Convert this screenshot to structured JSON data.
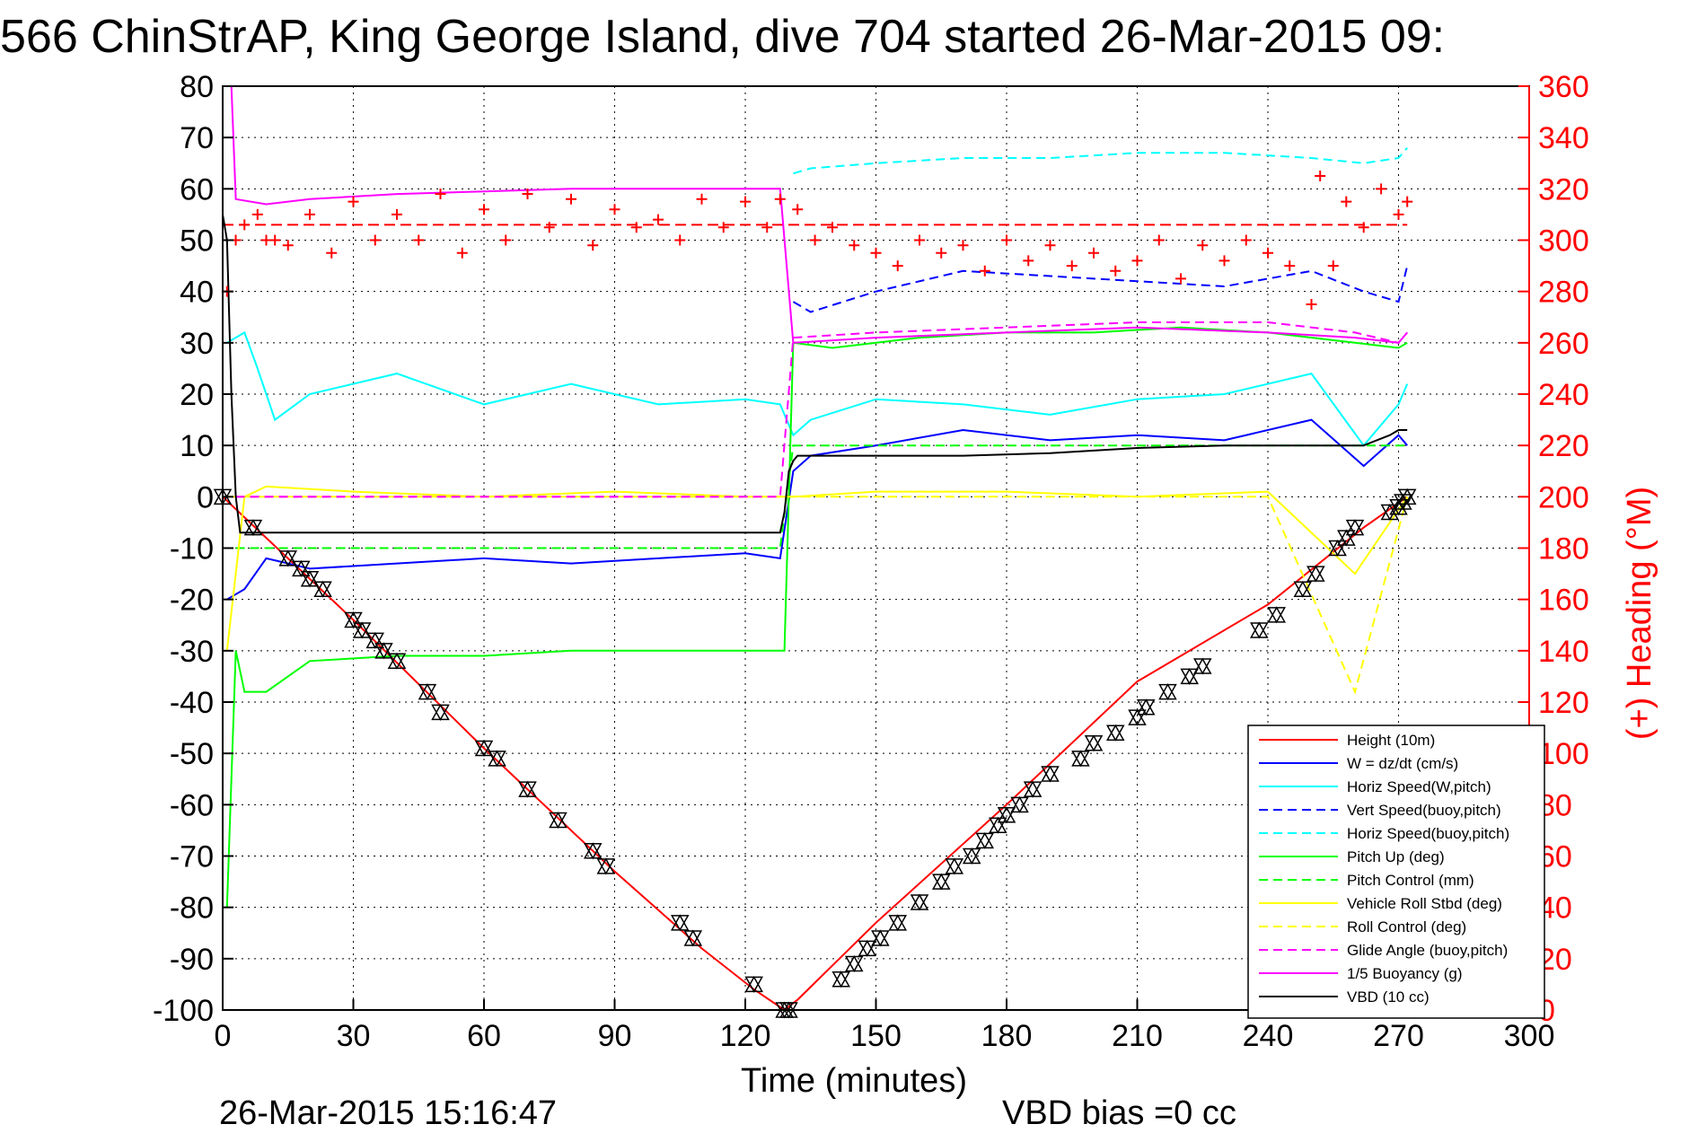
{
  "chart_data": {
    "type": "line",
    "title": "566 ChinStrAP, King George Island, dive 704 started 26-Mar-2015 09:",
    "xlabel": "Time (minutes)",
    "ylabel_right": "(+) Heading (°M)",
    "xlim": [
      0,
      300
    ],
    "ylim": [
      -100,
      80
    ],
    "ylim_right": [
      0,
      360
    ],
    "x_ticks": [
      0,
      30,
      60,
      90,
      120,
      150,
      180,
      210,
      240,
      270,
      300
    ],
    "y_ticks": [
      80,
      70,
      60,
      50,
      40,
      30,
      20,
      10,
      0,
      -10,
      -20,
      -30,
      -40,
      -50,
      -60,
      -70,
      -80,
      -90,
      -100
    ],
    "y_ticks_right": [
      360,
      340,
      320,
      300,
      280,
      260,
      240,
      220,
      200,
      180,
      160,
      140,
      120,
      100,
      80,
      60,
      40,
      20,
      0
    ],
    "grid": true,
    "legend_position": "lower-right",
    "footer_left": "26-Mar-2015 15:16:47",
    "footer_right": "VBD bias =0 cc",
    "series": [
      {
        "name": "Height (10m)",
        "color": "#ff0000",
        "style": "solid",
        "x": [
          0,
          10,
          30,
          60,
          90,
          110,
          122,
          129,
          132,
          150,
          180,
          210,
          240,
          262,
          272
        ],
        "y": [
          0,
          -8,
          -24,
          -49,
          -73,
          -88,
          -96,
          -100,
          -98,
          -83,
          -60,
          -36,
          -21,
          -6,
          0
        ]
      },
      {
        "name": "W = dz/dt (cm/s)",
        "color": "#0000ff",
        "style": "solid",
        "x": [
          1,
          5,
          10,
          20,
          40,
          60,
          80,
          100,
          120,
          128,
          131,
          135,
          150,
          170,
          190,
          210,
          230,
          250,
          262,
          270,
          272
        ],
        "y": [
          -20,
          -18,
          -12,
          -14,
          -13,
          -12,
          -13,
          -12,
          -11,
          -12,
          5,
          8,
          10,
          13,
          11,
          12,
          11,
          15,
          6,
          12,
          10
        ]
      },
      {
        "name": "Horiz Speed(W,pitch)",
        "color": "#00ffff",
        "style": "solid",
        "x": [
          1,
          5,
          8,
          12,
          20,
          40,
          60,
          80,
          100,
          120,
          128,
          131,
          135,
          150,
          170,
          190,
          210,
          230,
          250,
          262,
          270,
          272
        ],
        "y": [
          30,
          32,
          25,
          15,
          20,
          24,
          18,
          22,
          18,
          19,
          18,
          12,
          15,
          19,
          18,
          16,
          19,
          20,
          24,
          10,
          18,
          22
        ]
      },
      {
        "name": "Vert Speed(buoy,pitch)",
        "color": "#0000ff",
        "style": "dashed",
        "x": [
          131,
          135,
          150,
          170,
          190,
          210,
          230,
          250,
          262,
          270,
          272
        ],
        "y": [
          38,
          36,
          40,
          44,
          43,
          42,
          41,
          44,
          40,
          38,
          45
        ]
      },
      {
        "name": "Horiz Speed(buoy,pitch)",
        "color": "#00ffff",
        "style": "dashed",
        "x": [
          131,
          135,
          150,
          170,
          190,
          210,
          230,
          250,
          262,
          270,
          272
        ],
        "y": [
          63,
          64,
          65,
          66,
          66,
          67,
          67,
          66,
          65,
          66,
          68
        ]
      },
      {
        "name": "Pitch Up (deg)",
        "color": "#00ff00",
        "style": "solid",
        "x": [
          1,
          3,
          5,
          10,
          20,
          40,
          60,
          80,
          100,
          120,
          128,
          129,
          131,
          140,
          160,
          180,
          200,
          220,
          240,
          260,
          270,
          272
        ],
        "y": [
          -80,
          -30,
          -38,
          -38,
          -32,
          -31,
          -31,
          -30,
          -30,
          -30,
          -30,
          -30,
          30,
          29,
          31,
          32,
          32,
          33,
          32,
          30,
          29,
          30
        ]
      },
      {
        "name": "Pitch Control (mm)",
        "color": "#00ff00",
        "style": "dashed",
        "x": [
          3,
          10,
          30,
          60,
          90,
          120,
          128,
          131,
          140,
          160,
          180,
          200,
          220,
          240,
          260,
          272
        ],
        "y": [
          -10,
          -10,
          -10,
          -10,
          -10,
          -10,
          -10,
          10,
          10,
          10,
          10,
          10,
          10,
          10,
          10,
          10
        ]
      },
      {
        "name": "Vehicle Roll Stbd (deg)",
        "color": "#ffff00",
        "style": "solid",
        "x": [
          1,
          5,
          10,
          30,
          60,
          90,
          120,
          128,
          131,
          150,
          180,
          210,
          240,
          260,
          272
        ],
        "y": [
          -30,
          0,
          2,
          1,
          0,
          1,
          0,
          0,
          0,
          1,
          1,
          0,
          1,
          -15,
          0
        ]
      },
      {
        "name": "Roll Control (deg)",
        "color": "#ffff00",
        "style": "dashed",
        "x": [
          1,
          10,
          60,
          120,
          131,
          180,
          240,
          260,
          272
        ],
        "y": [
          0,
          0,
          0,
          0,
          0,
          0,
          0,
          -38,
          0
        ]
      },
      {
        "name": "Glide Angle (buoy,pitch)",
        "color": "#ff00ff",
        "style": "dashed",
        "x": [
          3,
          10,
          60,
          120,
          128,
          131,
          150,
          180,
          210,
          240,
          260,
          270,
          272
        ],
        "y": [
          0,
          0,
          0,
          0,
          0,
          31,
          32,
          33,
          34,
          34,
          32,
          30,
          32
        ]
      },
      {
        "name": "1/5 Buoyancy (g)",
        "color": "#ff00ff",
        "style": "solid",
        "x": [
          1,
          2,
          3,
          10,
          20,
          40,
          60,
          80,
          100,
          120,
          128,
          131,
          150,
          180,
          210,
          240,
          260,
          270,
          272
        ],
        "y": [
          80,
          80,
          58,
          57,
          58,
          59,
          59.5,
          60,
          60,
          60,
          60,
          30,
          31,
          32,
          33,
          32,
          31,
          30,
          32
        ]
      },
      {
        "name": "VBD (10 cc)",
        "color": "#000000",
        "style": "solid",
        "x": [
          0,
          1,
          2,
          3,
          4,
          128,
          129,
          130,
          131,
          132,
          150,
          170,
          190,
          210,
          230,
          250,
          262,
          268,
          270,
          272
        ],
        "y": [
          55,
          50,
          20,
          0,
          -7,
          -7,
          -3,
          5,
          7,
          8,
          8,
          8,
          8.5,
          9.5,
          10,
          10,
          10,
          12,
          13,
          13
        ]
      },
      {
        "name": "Heading",
        "color": "#ff0000",
        "style": "plus-markers",
        "axis": "right",
        "x": [
          1,
          3,
          5,
          8,
          10,
          12,
          15,
          20,
          25,
          30,
          35,
          40,
          45,
          50,
          55,
          60,
          65,
          70,
          75,
          80,
          85,
          90,
          95,
          100,
          105,
          110,
          115,
          120,
          125,
          128,
          132,
          136,
          140,
          145,
          150,
          155,
          160,
          165,
          170,
          175,
          180,
          185,
          190,
          195,
          200,
          205,
          210,
          215,
          220,
          225,
          230,
          235,
          240,
          245,
          250,
          252,
          255,
          258,
          262,
          266,
          270,
          272
        ],
        "y": [
          280,
          300,
          306,
          310,
          300,
          300,
          298,
          310,
          295,
          315,
          300,
          310,
          300,
          318,
          295,
          312,
          300,
          318,
          305,
          316,
          298,
          312,
          305,
          308,
          300,
          316,
          305,
          315,
          305,
          316,
          312,
          300,
          305,
          298,
          295,
          290,
          300,
          295,
          298,
          288,
          300,
          292,
          298,
          290,
          295,
          288,
          292,
          300,
          285,
          298,
          292,
          300,
          295,
          290,
          275,
          325,
          290,
          315,
          305,
          320,
          310,
          315
        ]
      }
    ],
    "marker_series": {
      "color": "#000000",
      "style": "triangles",
      "x": [
        0,
        7,
        15,
        18,
        20,
        23,
        30,
        32,
        35,
        37,
        40,
        47,
        50,
        60,
        63,
        70,
        77,
        85,
        88,
        105,
        108,
        122,
        129,
        130,
        142,
        145,
        148,
        151,
        155,
        160,
        165,
        168,
        172,
        175,
        178,
        180,
        183,
        186,
        190,
        197,
        200,
        205,
        210,
        212,
        217,
        222,
        225,
        238,
        242,
        248,
        251,
        256,
        258,
        260,
        268,
        270,
        271,
        272
      ],
      "y": [
        0,
        -6,
        -12,
        -14,
        -16,
        -18,
        -24,
        -26,
        -28,
        -30,
        -32,
        -38,
        -42,
        -49,
        -51,
        -57,
        -63,
        -69,
        -72,
        -83,
        -86,
        -95,
        -100,
        -100,
        -94,
        -91,
        -88,
        -86,
        -83,
        -79,
        -75,
        -72,
        -70,
        -67,
        -64,
        -62,
        -60,
        -57,
        -54,
        -51,
        -48,
        -46,
        -43,
        -41,
        -38,
        -35,
        -33,
        -26,
        -23,
        -18,
        -15,
        -10,
        -8,
        -6,
        -3,
        -2,
        -1,
        0
      ]
    },
    "red_dashed_line_right": 306,
    "dashed_zero_line": 0
  }
}
